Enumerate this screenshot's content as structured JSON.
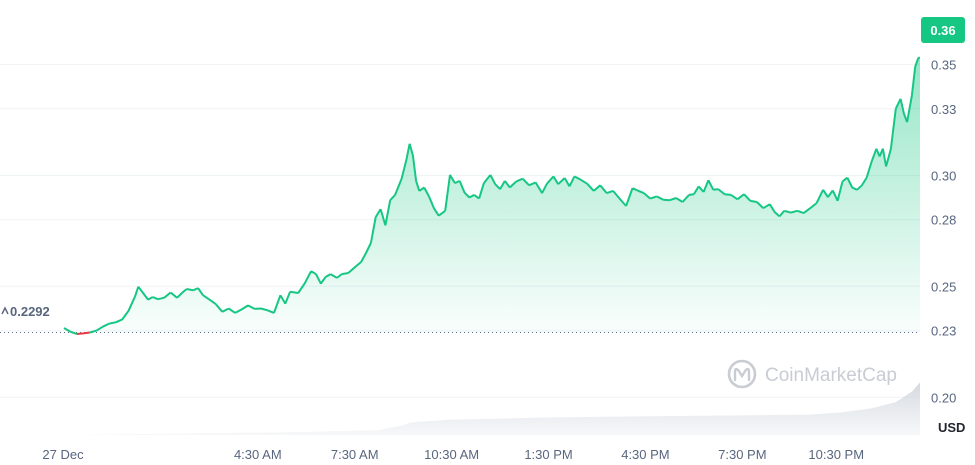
{
  "chart_data": {
    "type": "area",
    "x_labels": [
      "27 Dec",
      "4:30 AM",
      "7:30 AM",
      "10:30 AM",
      "1:30 PM",
      "4:30 PM",
      "7:30 PM",
      "10:30 PM"
    ],
    "y_ticks": [
      "0.20",
      "0.23",
      "0.25",
      "0.28",
      "0.30",
      "0.33",
      "0.35"
    ],
    "ylim": [
      0.183,
      0.379
    ],
    "unit": "USD",
    "open_price": 0.2292,
    "open_label": "0.2292",
    "current_price": 0.36,
    "current_label": "0.36",
    "watermark": "CoinMarketCap",
    "colors": {
      "up": "#16c784",
      "down": "#ea3943",
      "badge": "#16c784",
      "volume": "#dfe2e7",
      "grid": "#eff2f5"
    },
    "price": [
      [
        0.0,
        0.2312
      ],
      [
        0.4,
        0.2295
      ],
      [
        0.8,
        0.2285
      ],
      [
        1.2,
        0.2288
      ],
      [
        1.6,
        0.2292
      ],
      [
        2.0,
        0.23
      ],
      [
        2.4,
        0.2318
      ],
      [
        2.8,
        0.2332
      ],
      [
        3.2,
        0.2338
      ],
      [
        3.6,
        0.235
      ],
      [
        4.0,
        0.239
      ],
      [
        4.4,
        0.2455
      ],
      [
        4.6,
        0.2498
      ],
      [
        4.9,
        0.247
      ],
      [
        5.2,
        0.244
      ],
      [
        5.5,
        0.2452
      ],
      [
        5.8,
        0.2442
      ],
      [
        6.2,
        0.2448
      ],
      [
        6.6,
        0.2472
      ],
      [
        7.0,
        0.2448
      ],
      [
        7.3,
        0.247
      ],
      [
        7.6,
        0.2488
      ],
      [
        8.0,
        0.2482
      ],
      [
        8.3,
        0.2492
      ],
      [
        8.6,
        0.246
      ],
      [
        9.0,
        0.244
      ],
      [
        9.4,
        0.242
      ],
      [
        9.8,
        0.2385
      ],
      [
        10.2,
        0.24
      ],
      [
        10.6,
        0.238
      ],
      [
        11.0,
        0.2396
      ],
      [
        11.4,
        0.2414
      ],
      [
        11.8,
        0.2398
      ],
      [
        12.2,
        0.24
      ],
      [
        12.6,
        0.2392
      ],
      [
        13.0,
        0.238
      ],
      [
        13.4,
        0.246
      ],
      [
        13.7,
        0.2422
      ],
      [
        14.0,
        0.2475
      ],
      [
        14.5,
        0.247
      ],
      [
        14.9,
        0.2512
      ],
      [
        15.3,
        0.2568
      ],
      [
        15.6,
        0.2555
      ],
      [
        15.9,
        0.2512
      ],
      [
        16.2,
        0.2542
      ],
      [
        16.5,
        0.2555
      ],
      [
        16.9,
        0.2538
      ],
      [
        17.2,
        0.2555
      ],
      [
        17.6,
        0.256
      ],
      [
        18.0,
        0.2585
      ],
      [
        18.4,
        0.261
      ],
      [
        18.7,
        0.265
      ],
      [
        19.0,
        0.2695
      ],
      [
        19.3,
        0.2812
      ],
      [
        19.6,
        0.2848
      ],
      [
        19.9,
        0.2775
      ],
      [
        20.2,
        0.2888
      ],
      [
        20.5,
        0.2912
      ],
      [
        20.9,
        0.2985
      ],
      [
        21.2,
        0.307
      ],
      [
        21.4,
        0.3142
      ],
      [
        21.6,
        0.309
      ],
      [
        21.8,
        0.2975
      ],
      [
        22.0,
        0.293
      ],
      [
        22.3,
        0.2945
      ],
      [
        22.6,
        0.2905
      ],
      [
        22.9,
        0.2852
      ],
      [
        23.2,
        0.2818
      ],
      [
        23.6,
        0.284
      ],
      [
        23.9,
        0.3002
      ],
      [
        24.2,
        0.2965
      ],
      [
        24.5,
        0.2975
      ],
      [
        24.8,
        0.2922
      ],
      [
        25.1,
        0.29
      ],
      [
        25.4,
        0.2912
      ],
      [
        25.7,
        0.2895
      ],
      [
        26.0,
        0.2965
      ],
      [
        26.4,
        0.3002
      ],
      [
        26.7,
        0.296
      ],
      [
        27.0,
        0.2938
      ],
      [
        27.3,
        0.2975
      ],
      [
        27.6,
        0.2945
      ],
      [
        28.0,
        0.2972
      ],
      [
        28.4,
        0.2985
      ],
      [
        28.8,
        0.2955
      ],
      [
        29.2,
        0.2968
      ],
      [
        29.6,
        0.292
      ],
      [
        29.9,
        0.2962
      ],
      [
        30.3,
        0.2995
      ],
      [
        30.6,
        0.296
      ],
      [
        31.0,
        0.2988
      ],
      [
        31.3,
        0.295
      ],
      [
        31.6,
        0.2995
      ],
      [
        32.0,
        0.298
      ],
      [
        32.4,
        0.2962
      ],
      [
        32.8,
        0.293
      ],
      [
        33.2,
        0.2955
      ],
      [
        33.6,
        0.292
      ],
      [
        34.0,
        0.293
      ],
      [
        34.4,
        0.2895
      ],
      [
        34.8,
        0.2862
      ],
      [
        35.2,
        0.2942
      ],
      [
        35.5,
        0.2932
      ],
      [
        35.9,
        0.292
      ],
      [
        36.3,
        0.2895
      ],
      [
        36.7,
        0.2905
      ],
      [
        37.1,
        0.289
      ],
      [
        37.5,
        0.2888
      ],
      [
        37.9,
        0.2898
      ],
      [
        38.3,
        0.288
      ],
      [
        38.7,
        0.2912
      ],
      [
        39.0,
        0.2915
      ],
      [
        39.3,
        0.295
      ],
      [
        39.6,
        0.2925
      ],
      [
        39.9,
        0.2978
      ],
      [
        40.2,
        0.2935
      ],
      [
        40.5,
        0.2938
      ],
      [
        40.9,
        0.2915
      ],
      [
        41.3,
        0.2912
      ],
      [
        41.7,
        0.2892
      ],
      [
        42.1,
        0.2915
      ],
      [
        42.5,
        0.2885
      ],
      [
        42.9,
        0.288
      ],
      [
        43.3,
        0.2852
      ],
      [
        43.7,
        0.287
      ],
      [
        44.0,
        0.2835
      ],
      [
        44.3,
        0.2815
      ],
      [
        44.6,
        0.284
      ],
      [
        45.0,
        0.2832
      ],
      [
        45.4,
        0.284
      ],
      [
        45.8,
        0.283
      ],
      [
        46.2,
        0.2852
      ],
      [
        46.6,
        0.2875
      ],
      [
        47.0,
        0.2935
      ],
      [
        47.3,
        0.2902
      ],
      [
        47.6,
        0.2932
      ],
      [
        47.9,
        0.2885
      ],
      [
        48.2,
        0.2972
      ],
      [
        48.5,
        0.299
      ],
      [
        48.8,
        0.2945
      ],
      [
        49.1,
        0.2935
      ],
      [
        49.4,
        0.2955
      ],
      [
        49.7,
        0.299
      ],
      [
        50.0,
        0.306
      ],
      [
        50.3,
        0.312
      ],
      [
        50.5,
        0.3085
      ],
      [
        50.7,
        0.312
      ],
      [
        50.9,
        0.304
      ],
      [
        51.2,
        0.312
      ],
      [
        51.5,
        0.33
      ],
      [
        51.8,
        0.3345
      ],
      [
        52.0,
        0.328
      ],
      [
        52.2,
        0.324
      ],
      [
        52.5,
        0.336
      ],
      [
        52.7,
        0.349
      ],
      [
        52.9,
        0.353
      ],
      [
        53.0,
        0.353
      ]
    ],
    "volume": [
      [
        0.0,
        0.0
      ],
      [
        7.0,
        0.02
      ],
      [
        14.0,
        0.04
      ],
      [
        19.5,
        0.07
      ],
      [
        21.0,
        0.14
      ],
      [
        21.5,
        0.18
      ],
      [
        24.0,
        0.22
      ],
      [
        30.0,
        0.25
      ],
      [
        37.0,
        0.27
      ],
      [
        42.0,
        0.28
      ],
      [
        46.0,
        0.29
      ],
      [
        48.0,
        0.32
      ],
      [
        50.0,
        0.38
      ],
      [
        51.5,
        0.47
      ],
      [
        52.5,
        0.62
      ],
      [
        53.0,
        0.75
      ]
    ]
  }
}
